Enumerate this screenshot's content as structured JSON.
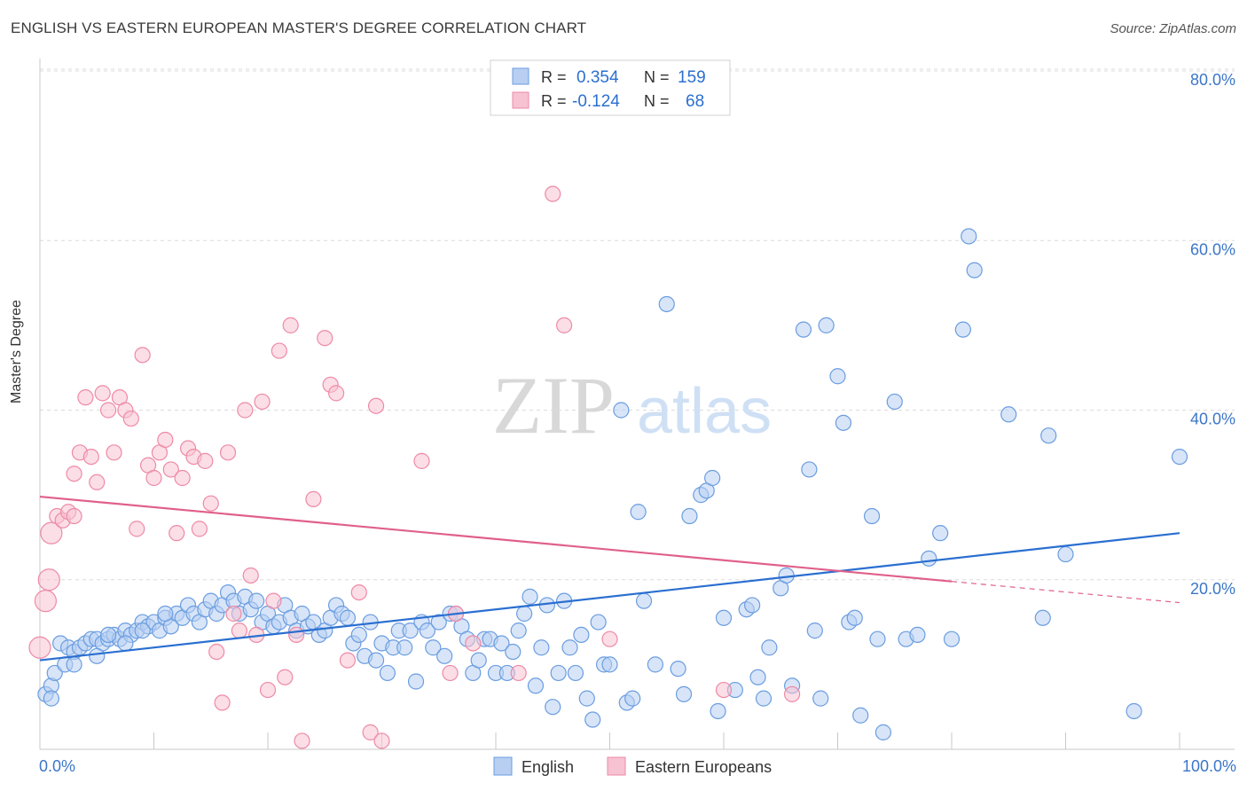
{
  "title": "ENGLISH VS EASTERN EUROPEAN MASTER'S DEGREE CORRELATION CHART",
  "source": "Source: ZipAtlas.com",
  "watermark": {
    "zip": "ZIP",
    "atlas": "atlas"
  },
  "chart_data": {
    "type": "scatter",
    "title": "ENGLISH VS EASTERN EUROPEAN MASTER'S DEGREE CORRELATION CHART",
    "xlabel": "",
    "ylabel": "Master's Degree",
    "xlim": [
      0,
      100
    ],
    "ylim": [
      0,
      80
    ],
    "x_tick_labels": [
      "0.0%",
      "100.0%"
    ],
    "y_ticks": [
      20,
      40,
      60,
      80
    ],
    "y_tick_labels": [
      "20.0%",
      "40.0%",
      "60.0%",
      "80.0%"
    ],
    "grid": true,
    "legend_position": "top-center",
    "bottom_legend": [
      "English",
      "Eastern Europeans"
    ],
    "stats": [
      {
        "r_label": "R =",
        "r": "0.354",
        "n_label": "N =",
        "n": "159"
      },
      {
        "r_label": "R =",
        "r": "-0.124",
        "n_label": "N =",
        "n": "68"
      }
    ],
    "series": [
      {
        "name": "English",
        "color": "#6a9de0",
        "fill": "#b8cff2",
        "line_color": "#2a6fd0",
        "trend": {
          "x0": 0,
          "y0": 10.5,
          "x1": 100,
          "y1": 25.5
        },
        "points": [
          [
            0.5,
            6.5
          ],
          [
            1,
            7.5
          ],
          [
            1.3,
            9
          ],
          [
            1.8,
            12.5
          ],
          [
            2.2,
            10
          ],
          [
            2.5,
            12
          ],
          [
            3,
            11.5
          ],
          [
            3.5,
            12
          ],
          [
            4,
            12.5
          ],
          [
            4.5,
            13
          ],
          [
            5,
            13
          ],
          [
            5.5,
            12.5
          ],
          [
            6,
            13
          ],
          [
            6.5,
            13.5
          ],
          [
            7,
            13
          ],
          [
            7.5,
            14
          ],
          [
            8,
            13.5
          ],
          [
            8.5,
            14
          ],
          [
            9,
            15
          ],
          [
            9.5,
            14.5
          ],
          [
            10,
            15
          ],
          [
            10.5,
            14
          ],
          [
            11,
            15.5
          ],
          [
            11.5,
            14.5
          ],
          [
            12,
            16
          ],
          [
            12.5,
            15.5
          ],
          [
            13,
            17
          ],
          [
            13.5,
            16
          ],
          [
            14,
            15
          ],
          [
            14.5,
            16.5
          ],
          [
            15,
            17.5
          ],
          [
            15.5,
            16
          ],
          [
            16,
            17
          ],
          [
            16.5,
            18.5
          ],
          [
            17,
            17.5
          ],
          [
            17.5,
            16
          ],
          [
            18,
            18
          ],
          [
            18.5,
            16.5
          ],
          [
            19,
            17.5
          ],
          [
            19.5,
            15
          ],
          [
            20,
            16
          ],
          [
            20.5,
            14.5
          ],
          [
            21,
            15
          ],
          [
            21.5,
            17
          ],
          [
            22,
            15.5
          ],
          [
            22.5,
            14
          ],
          [
            23,
            16
          ],
          [
            23.5,
            14.5
          ],
          [
            24,
            15
          ],
          [
            24.5,
            13.5
          ],
          [
            25,
            14
          ],
          [
            25.5,
            15.5
          ],
          [
            26,
            17
          ],
          [
            26.5,
            16
          ],
          [
            27,
            15.5
          ],
          [
            27.5,
            12.5
          ],
          [
            28,
            13.5
          ],
          [
            28.5,
            11
          ],
          [
            29,
            15
          ],
          [
            29.5,
            10.5
          ],
          [
            30,
            12.5
          ],
          [
            30.5,
            9
          ],
          [
            31,
            12
          ],
          [
            31.5,
            14
          ],
          [
            32,
            12
          ],
          [
            32.5,
            14
          ],
          [
            33,
            8
          ],
          [
            33.5,
            15
          ],
          [
            34,
            14
          ],
          [
            34.5,
            12
          ],
          [
            35,
            15
          ],
          [
            35.5,
            11
          ],
          [
            36,
            16
          ],
          [
            36.5,
            16
          ],
          [
            37,
            14.5
          ],
          [
            37.5,
            13
          ],
          [
            38,
            9
          ],
          [
            38.5,
            10.5
          ],
          [
            39,
            13
          ],
          [
            39.5,
            13
          ],
          [
            40,
            9
          ],
          [
            40.5,
            12.5
          ],
          [
            41,
            9
          ],
          [
            41.5,
            11.5
          ],
          [
            42,
            14
          ],
          [
            42.5,
            16
          ],
          [
            43,
            18
          ],
          [
            43.5,
            7.5
          ],
          [
            44,
            12
          ],
          [
            44.5,
            17
          ],
          [
            45,
            5
          ],
          [
            45.5,
            9
          ],
          [
            46,
            17.5
          ],
          [
            46.5,
            12
          ],
          [
            47,
            9
          ],
          [
            47.5,
            13.5
          ],
          [
            48,
            6
          ],
          [
            48.5,
            3.5
          ],
          [
            49,
            15
          ],
          [
            49.5,
            10
          ],
          [
            50,
            10
          ],
          [
            51,
            40
          ],
          [
            51.5,
            5.5
          ],
          [
            52,
            6
          ],
          [
            52.5,
            28
          ],
          [
            53,
            17.5
          ],
          [
            54,
            10
          ],
          [
            55,
            52.5
          ],
          [
            56,
            9.5
          ],
          [
            56.5,
            6.5
          ],
          [
            57,
            27.5
          ],
          [
            58,
            30
          ],
          [
            58.5,
            30.5
          ],
          [
            59,
            32
          ],
          [
            59.5,
            4.5
          ],
          [
            60,
            15.5
          ],
          [
            61,
            7
          ],
          [
            62,
            16.5
          ],
          [
            62.5,
            17
          ],
          [
            63,
            8.5
          ],
          [
            63.5,
            6
          ],
          [
            64,
            12
          ],
          [
            65,
            19
          ],
          [
            65.5,
            20.5
          ],
          [
            66,
            7.5
          ],
          [
            67,
            49.5
          ],
          [
            67.5,
            33
          ],
          [
            68,
            14
          ],
          [
            68.5,
            6
          ],
          [
            69,
            50
          ],
          [
            70,
            44
          ],
          [
            70.5,
            38.5
          ],
          [
            71,
            15
          ],
          [
            71.5,
            15.5
          ],
          [
            72,
            4
          ],
          [
            73,
            27.5
          ],
          [
            73.5,
            13
          ],
          [
            74,
            2
          ],
          [
            75,
            41
          ],
          [
            76,
            13
          ],
          [
            77,
            13.5
          ],
          [
            78,
            22.5
          ],
          [
            79,
            25.5
          ],
          [
            80,
            13
          ],
          [
            81,
            49.5
          ],
          [
            81.5,
            60.5
          ],
          [
            82,
            56.5
          ],
          [
            85,
            39.5
          ],
          [
            88,
            15.5
          ],
          [
            88.5,
            37
          ],
          [
            90,
            23
          ],
          [
            96,
            4.5
          ],
          [
            100,
            34.5
          ],
          [
            1,
            6
          ],
          [
            3,
            10
          ],
          [
            5,
            11
          ],
          [
            6,
            13.5
          ],
          [
            7.5,
            12.5
          ],
          [
            9,
            14
          ],
          [
            11,
            16
          ]
        ]
      },
      {
        "name": "Eastern Europeans",
        "color": "#ee8aa6",
        "fill": "#f7c2d2",
        "line_color": "#e0608a",
        "trend": {
          "x0": 0,
          "y0": 29.8,
          "x1": 80,
          "y1": 19.8
        },
        "trend_dashed": {
          "x0": 80,
          "y0": 19.8,
          "x1": 100,
          "y1": 17.3
        },
        "points": [
          [
            0,
            12
          ],
          [
            0.5,
            17.5
          ],
          [
            0.8,
            20
          ],
          [
            1,
            25.5
          ],
          [
            1.5,
            27.5
          ],
          [
            2,
            27
          ],
          [
            2.5,
            28
          ],
          [
            3,
            32.5
          ],
          [
            3.5,
            35
          ],
          [
            4,
            41.5
          ],
          [
            4.5,
            34.5
          ],
          [
            5,
            31.5
          ],
          [
            5.5,
            42
          ],
          [
            6,
            40
          ],
          [
            6.5,
            35
          ],
          [
            7,
            41.5
          ],
          [
            7.5,
            40
          ],
          [
            8,
            39
          ],
          [
            8.5,
            26
          ],
          [
            9,
            46.5
          ],
          [
            9.5,
            33.5
          ],
          [
            10,
            32
          ],
          [
            10.5,
            35
          ],
          [
            11,
            36.5
          ],
          [
            11.5,
            33
          ],
          [
            12,
            25.5
          ],
          [
            12.5,
            32
          ],
          [
            13,
            35.5
          ],
          [
            13.5,
            34.5
          ],
          [
            14,
            26
          ],
          [
            14.5,
            34
          ],
          [
            15,
            29
          ],
          [
            15.5,
            11.5
          ],
          [
            16,
            5.5
          ],
          [
            16.5,
            35
          ],
          [
            17,
            16
          ],
          [
            17.5,
            14
          ],
          [
            18,
            40
          ],
          [
            18.5,
            20.5
          ],
          [
            19,
            13.5
          ],
          [
            19.5,
            41
          ],
          [
            20,
            7
          ],
          [
            20.5,
            17.5
          ],
          [
            21,
            47
          ],
          [
            21.5,
            8.5
          ],
          [
            22,
            50
          ],
          [
            22.5,
            13.5
          ],
          [
            23,
            1
          ],
          [
            24,
            29.5
          ],
          [
            25,
            48.5
          ],
          [
            25.5,
            43
          ],
          [
            26,
            42
          ],
          [
            27,
            10.5
          ],
          [
            28,
            18.5
          ],
          [
            29,
            2
          ],
          [
            29.5,
            40.5
          ],
          [
            30,
            1
          ],
          [
            33.5,
            34
          ],
          [
            36,
            9
          ],
          [
            36.5,
            16
          ],
          [
            38,
            12.5
          ],
          [
            42,
            9
          ],
          [
            45,
            65.5
          ],
          [
            46,
            50
          ],
          [
            50,
            13
          ],
          [
            60,
            7
          ],
          [
            66,
            6.5
          ],
          [
            3,
            27.5
          ]
        ]
      }
    ]
  }
}
